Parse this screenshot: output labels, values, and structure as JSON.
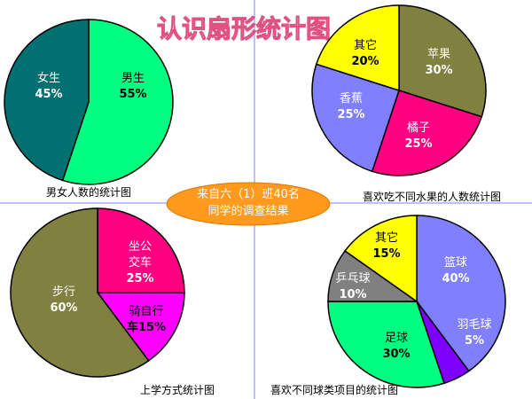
{
  "page": {
    "title": "认识扇形统计图"
  },
  "center_note": {
    "line1": "来自六（1）班40名",
    "line2": "同学的调查结果"
  },
  "chart_data": [
    {
      "type": "pie",
      "title": "男女人数的统计图",
      "slices": [
        {
          "label": "男生",
          "percent_label": "55%",
          "value": 55,
          "color": "#00ff80"
        },
        {
          "label": "女生",
          "percent_label": "45%",
          "value": 45,
          "color": "#007070"
        }
      ]
    },
    {
      "type": "pie",
      "title": "喜欢吃不同水果的人数统计图",
      "slices": [
        {
          "label": "苹果",
          "percent_label": "30%",
          "value": 30,
          "color": "#808040"
        },
        {
          "label": "橘子",
          "percent_label": "25%",
          "value": 25,
          "color": "#ff0080"
        },
        {
          "label": "香蕉",
          "percent_label": "25%",
          "value": 25,
          "color": "#8080ff"
        },
        {
          "label": "其它",
          "percent_label": "20%",
          "value": 20,
          "color": "#ffff00"
        }
      ]
    },
    {
      "type": "pie",
      "title": "上学方式统计图",
      "slices": [
        {
          "label": "坐公交车",
          "label_lines": [
            "坐公",
            "交车"
          ],
          "percent_label": "25%",
          "value": 25,
          "color": "#ff0080"
        },
        {
          "label": "骑自行车",
          "label_lines": [
            "骑自行",
            "车15%"
          ],
          "percent_label": "15%",
          "value": 15,
          "color": "#ff00ff"
        },
        {
          "label": "步行",
          "percent_label": "60%",
          "value": 60,
          "color": "#808040"
        }
      ]
    },
    {
      "type": "pie",
      "title": "喜欢不同球类项目的统计图",
      "slices": [
        {
          "label": "篮球",
          "percent_label": "40%",
          "value": 40,
          "color": "#8080ff"
        },
        {
          "label": "羽毛球",
          "percent_label": "5%",
          "value": 5,
          "color": "#8000ff"
        },
        {
          "label": "足球",
          "percent_label": "30%",
          "value": 30,
          "color": "#00ff80"
        },
        {
          "label": "乒乓球",
          "percent_label": "10%",
          "value": 10,
          "color": "#808080"
        },
        {
          "label": "其它",
          "percent_label": "15%",
          "value": 15,
          "color": "#ffff00"
        }
      ]
    }
  ]
}
